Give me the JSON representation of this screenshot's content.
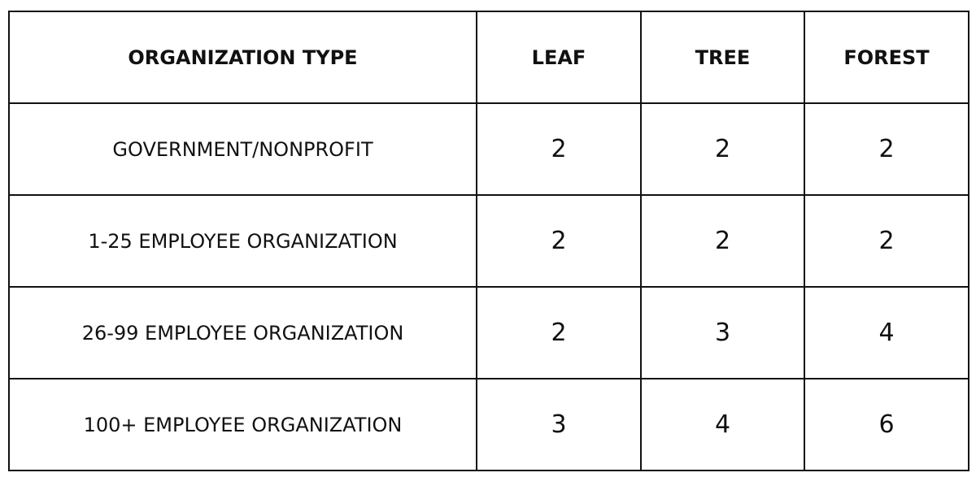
{
  "table": {
    "header": [
      "ORGANIZATION TYPE",
      "LEAF",
      "TREE",
      "FOREST"
    ],
    "rows": [
      [
        "GOVERNMENT/NONPROFIT",
        2,
        2,
        2
      ],
      [
        "1-25 EMPLOYEE ORGANIZATION",
        2,
        2,
        2
      ],
      [
        "26-99 EMPLOYEE ORGANIZATION",
        2,
        3,
        4
      ],
      [
        "100+ EMPLOYEE ORGANIZATION",
        3,
        4,
        6
      ]
    ]
  }
}
